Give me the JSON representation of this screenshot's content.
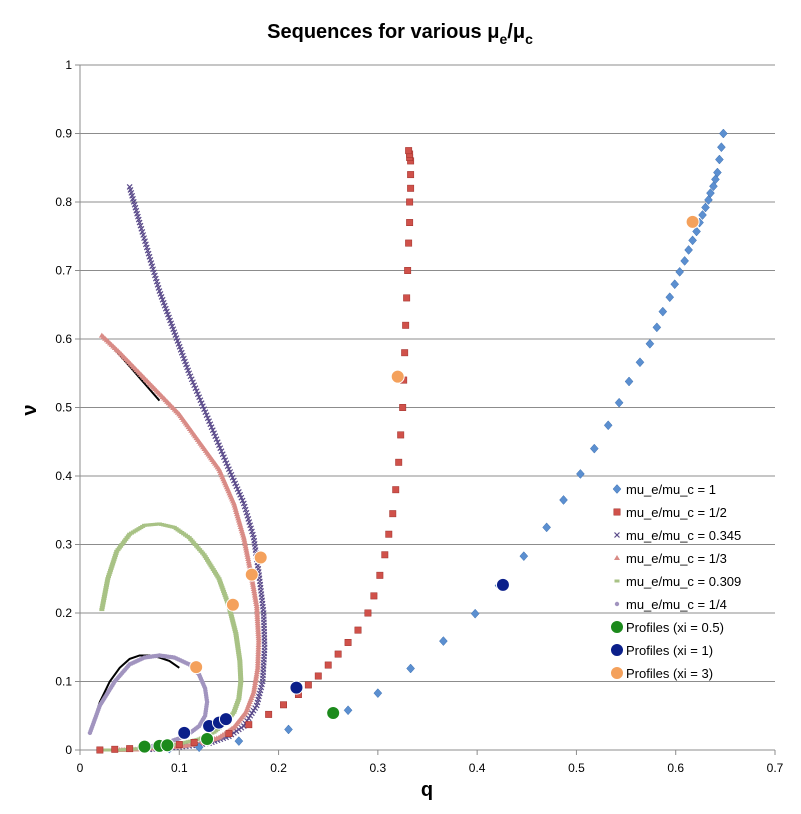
{
  "chart_data": {
    "type": "scatter",
    "title_main": "Sequences for various μ",
    "title_sub1": "e",
    "title_mid": "/μ",
    "title_sub2": "c",
    "xlabel": "q",
    "ylabel": "ν",
    "xlim": [
      0,
      0.7
    ],
    "ylim": [
      0,
      1
    ],
    "xticks": [
      "0",
      "0.1",
      "0.2",
      "0.3",
      "0.4",
      "0.5",
      "0.6",
      "0.7"
    ],
    "yticks": [
      "0",
      "0.1",
      "0.2",
      "0.3",
      "0.4",
      "0.5",
      "0.6",
      "0.7",
      "0.8",
      "0.9",
      "1"
    ],
    "grid": "horizontal",
    "legend_position": "right",
    "series": [
      {
        "name": "mu_e/mu_c = 1",
        "marker": "diamond",
        "color": "#5b8fd0",
        "x": [
          0.09,
          0.12,
          0.16,
          0.21,
          0.27,
          0.3,
          0.333,
          0.366,
          0.398,
          0.422,
          0.447,
          0.47,
          0.487,
          0.504,
          0.518,
          0.532,
          0.543,
          0.553,
          0.564,
          0.574,
          0.581,
          0.587,
          0.594,
          0.599,
          0.604,
          0.609,
          0.613,
          0.617,
          0.621,
          0.624,
          0.627,
          0.63,
          0.633,
          0.635,
          0.638,
          0.64,
          0.642,
          0.644,
          0.646,
          0.648
        ],
        "y": [
          0.002,
          0.004,
          0.013,
          0.03,
          0.058,
          0.083,
          0.119,
          0.159,
          0.199,
          0.24,
          0.283,
          0.325,
          0.365,
          0.403,
          0.44,
          0.474,
          0.507,
          0.538,
          0.566,
          0.593,
          0.617,
          0.64,
          0.661,
          0.68,
          0.698,
          0.714,
          0.73,
          0.744,
          0.757,
          0.77,
          0.781,
          0.792,
          0.803,
          0.813,
          0.823,
          0.833,
          0.843,
          0.862,
          0.88,
          0.9
        ]
      },
      {
        "name": "mu_e/mu_c = 1/2",
        "marker": "square",
        "color": "#d0514a",
        "x": [
          0.02,
          0.035,
          0.05,
          0.065,
          0.08,
          0.1,
          0.115,
          0.13,
          0.15,
          0.17,
          0.19,
          0.205,
          0.22,
          0.23,
          0.24,
          0.25,
          0.26,
          0.27,
          0.28,
          0.29,
          0.296,
          0.302,
          0.307,
          0.311,
          0.315,
          0.318,
          0.321,
          0.323,
          0.325,
          0.326,
          0.327,
          0.328,
          0.329,
          0.33,
          0.331,
          0.332,
          0.332,
          0.333,
          0.333,
          0.333,
          0.332,
          0.332,
          0.331
        ],
        "y": [
          0.0,
          0.001,
          0.002,
          0.003,
          0.005,
          0.008,
          0.011,
          0.016,
          0.024,
          0.037,
          0.052,
          0.066,
          0.081,
          0.095,
          0.108,
          0.124,
          0.14,
          0.157,
          0.175,
          0.2,
          0.225,
          0.255,
          0.285,
          0.315,
          0.345,
          0.38,
          0.42,
          0.46,
          0.5,
          0.54,
          0.58,
          0.62,
          0.66,
          0.7,
          0.74,
          0.77,
          0.8,
          0.82,
          0.84,
          0.86,
          0.865,
          0.87,
          0.875
        ]
      },
      {
        "name": "mu_e/mu_c = 0.345",
        "marker": "cross",
        "color": "#5a4a8a",
        "curve_x": [
          0.05,
          0.06,
          0.07,
          0.08,
          0.095,
          0.11,
          0.13,
          0.15,
          0.165,
          0.175,
          0.18,
          0.185,
          0.186,
          0.184,
          0.178,
          0.165,
          0.15,
          0.13,
          0.11,
          0.09,
          0.07
        ],
        "curve_y": [
          0.822,
          0.77,
          0.72,
          0.67,
          0.61,
          0.55,
          0.48,
          0.41,
          0.36,
          0.31,
          0.26,
          0.2,
          0.15,
          0.1,
          0.065,
          0.035,
          0.02,
          0.01,
          0.006,
          0.003,
          0.001
        ]
      },
      {
        "name": "mu_e/mu_c = 1/3",
        "marker": "triangle",
        "color": "#d98b86",
        "curve_x": [
          0.022,
          0.04,
          0.06,
          0.08,
          0.1,
          0.12,
          0.14,
          0.155,
          0.165,
          0.172,
          0.178,
          0.18,
          0.179,
          0.175,
          0.167,
          0.155,
          0.14,
          0.12,
          0.1,
          0.08,
          0.06,
          0.04
        ],
        "curve_y": [
          0.605,
          0.58,
          0.55,
          0.52,
          0.49,
          0.45,
          0.41,
          0.36,
          0.31,
          0.26,
          0.21,
          0.16,
          0.12,
          0.085,
          0.055,
          0.033,
          0.018,
          0.009,
          0.005,
          0.003,
          0.001,
          0.0
        ]
      },
      {
        "name": "mu_e/mu_c = 0.309",
        "marker": "dash",
        "color": "#a8c285",
        "curve_x": [
          0.022,
          0.028,
          0.037,
          0.05,
          0.065,
          0.08,
          0.095,
          0.11,
          0.125,
          0.14,
          0.15,
          0.157,
          0.161,
          0.162,
          0.16,
          0.155,
          0.147,
          0.135,
          0.12,
          0.1,
          0.08,
          0.06,
          0.04,
          0.02
        ],
        "curve_y": [
          0.205,
          0.25,
          0.29,
          0.315,
          0.328,
          0.33,
          0.325,
          0.31,
          0.285,
          0.25,
          0.21,
          0.17,
          0.13,
          0.1,
          0.075,
          0.055,
          0.04,
          0.026,
          0.016,
          0.009,
          0.005,
          0.002,
          0.0,
          0.0
        ]
      },
      {
        "name": "mu_e/mu_c = 1/4",
        "marker": "dot",
        "color": "#a194bf",
        "curve_x": [
          0.01,
          0.02,
          0.035,
          0.05,
          0.065,
          0.08,
          0.095,
          0.11,
          0.12,
          0.126,
          0.128,
          0.126,
          0.12,
          0.11,
          0.1,
          0.09,
          0.08,
          0.07,
          0.06
        ],
        "curve_y": [
          0.025,
          0.065,
          0.1,
          0.125,
          0.135,
          0.138,
          0.135,
          0.125,
          0.11,
          0.09,
          0.07,
          0.05,
          0.035,
          0.024,
          0.017,
          0.012,
          0.008,
          0.005,
          0.003
        ]
      },
      {
        "name": "Profiles (xi = 0.5)",
        "marker": "circle",
        "color": "#1c8a1c",
        "x": [
          0.065,
          0.08,
          0.088,
          0.128,
          0.255
        ],
        "y": [
          0.005,
          0.006,
          0.007,
          0.016,
          0.054
        ]
      },
      {
        "name": "Profiles (xi = 1)",
        "marker": "circle",
        "color": "#0b1f8a",
        "x": [
          0.105,
          0.13,
          0.14,
          0.147,
          0.218,
          0.426
        ],
        "y": [
          0.025,
          0.035,
          0.04,
          0.045,
          0.091,
          0.241
        ]
      },
      {
        "name": "Profiles (xi = 3)",
        "marker": "circle",
        "color": "#f4a15c",
        "x": [
          0.117,
          0.154,
          0.173,
          0.182,
          0.32,
          0.617
        ],
        "y": [
          0.121,
          0.212,
          0.256,
          0.281,
          0.545,
          0.771
        ]
      }
    ],
    "black_line": {
      "color": "#000000",
      "x": [
        0.01,
        0.02,
        0.03,
        0.04,
        0.05,
        0.06,
        0.07,
        0.08,
        0.09,
        0.1
      ],
      "y": [
        0.025,
        0.07,
        0.1,
        0.12,
        0.133,
        0.138,
        0.138,
        0.135,
        0.13,
        0.12
      ]
    },
    "black_line2": {
      "color": "#000000",
      "x": [
        0.022,
        0.035,
        0.05,
        0.065,
        0.08
      ],
      "y": [
        0.605,
        0.585,
        0.56,
        0.535,
        0.51
      ]
    }
  }
}
